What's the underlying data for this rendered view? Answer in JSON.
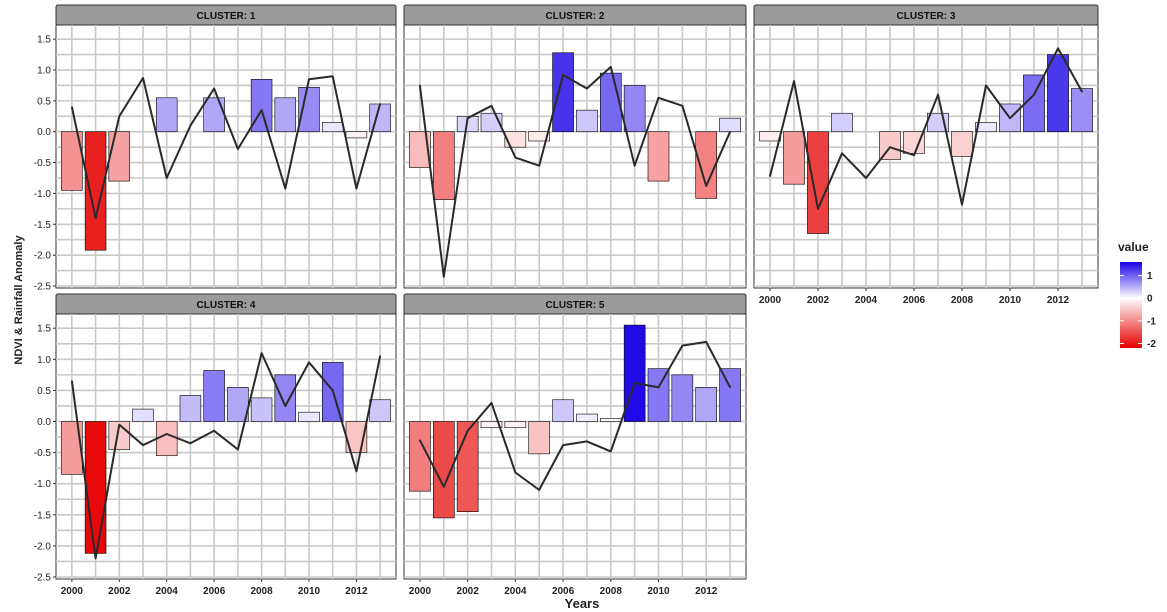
{
  "figure": {
    "ylabel": "NDVI & Rainfall Anomaly",
    "xlabel": "Years"
  },
  "legend": {
    "title": "value",
    "ticks": [
      {
        "value": 1,
        "label": "1"
      },
      {
        "value": 0,
        "label": "0"
      },
      {
        "value": -1,
        "label": "-1"
      },
      {
        "value": -2,
        "label": "-2"
      }
    ],
    "colors": {
      "high": "#1a00e6",
      "mid": "#ffffff",
      "low": "#e60000"
    },
    "range": [
      -2.2,
      1.6
    ]
  },
  "chart_data": {
    "type": "bar",
    "facet_by": "cluster",
    "x": [
      2000,
      2001,
      2002,
      2003,
      2004,
      2005,
      2006,
      2007,
      2008,
      2009,
      2010,
      2011,
      2012,
      2013
    ],
    "xticks": [
      2000,
      2002,
      2004,
      2006,
      2008,
      2010,
      2012
    ],
    "ylim": [
      -2.5,
      1.6
    ],
    "yticks": [
      1.5,
      1.0,
      0.5,
      0.0,
      -0.5,
      -1.0,
      -1.5,
      -2.0,
      -2.5
    ],
    "ytick_labels": [
      "1.5",
      "1.0",
      "0.5",
      "0.0",
      "-0.5",
      "-1.0",
      "-1.5",
      "-2.0",
      "-2.5"
    ],
    "grid": true,
    "legend_position": "right",
    "bar_series": "NDVI anomaly (fill color = value)",
    "line_series": "Rainfall anomaly",
    "panels": [
      {
        "title": "CLUSTER: 1",
        "bars": [
          -0.95,
          -1.92,
          -0.8,
          0.0,
          0.55,
          0.0,
          0.55,
          0.0,
          0.85,
          0.55,
          0.72,
          0.15,
          -0.1,
          0.45
        ],
        "line": [
          0.4,
          -1.4,
          0.25,
          0.87,
          -0.75,
          0.1,
          0.7,
          -0.28,
          0.35,
          -0.92,
          0.85,
          0.9,
          -0.92,
          0.45
        ]
      },
      {
        "title": "CLUSTER: 2",
        "bars": [
          -0.58,
          -1.1,
          0.25,
          0.3,
          -0.25,
          -0.15,
          1.28,
          0.35,
          0.95,
          0.75,
          -0.8,
          0.0,
          -1.08,
          0.22
        ],
        "line": [
          0.75,
          -2.35,
          0.22,
          0.42,
          -0.42,
          -0.55,
          0.92,
          0.7,
          1.05,
          -0.55,
          0.55,
          0.42,
          -0.88,
          0.0
        ]
      },
      {
        "title": "CLUSTER: 3",
        "bars": [
          -0.15,
          -0.85,
          -1.65,
          0.3,
          0.0,
          -0.45,
          -0.35,
          0.3,
          -0.4,
          0.15,
          0.45,
          0.92,
          1.25,
          0.7
        ],
        "line": [
          -0.72,
          0.82,
          -1.25,
          -0.35,
          -0.75,
          -0.25,
          -0.38,
          0.6,
          -1.18,
          0.75,
          0.22,
          0.6,
          1.35,
          0.65
        ]
      },
      {
        "title": "CLUSTER: 4",
        "bars": [
          -0.85,
          -2.12,
          -0.45,
          0.2,
          -0.55,
          0.42,
          0.82,
          0.55,
          0.38,
          0.75,
          0.15,
          0.95,
          -0.5,
          0.35
        ],
        "line": [
          0.65,
          -2.2,
          -0.05,
          -0.38,
          -0.2,
          -0.35,
          -0.15,
          -0.45,
          1.1,
          0.25,
          0.95,
          0.5,
          -0.8,
          1.05
        ]
      },
      {
        "title": "CLUSTER: 5",
        "bars": [
          -1.12,
          -1.55,
          -1.45,
          -0.1,
          -0.1,
          -0.52,
          0.35,
          0.12,
          0.05,
          1.55,
          0.85,
          0.75,
          0.55,
          0.85
        ],
        "line": [
          -0.3,
          -1.05,
          -0.15,
          0.3,
          -0.82,
          -1.1,
          -0.38,
          -0.32,
          -0.48,
          0.62,
          0.55,
          1.22,
          1.28,
          0.55
        ]
      }
    ]
  }
}
